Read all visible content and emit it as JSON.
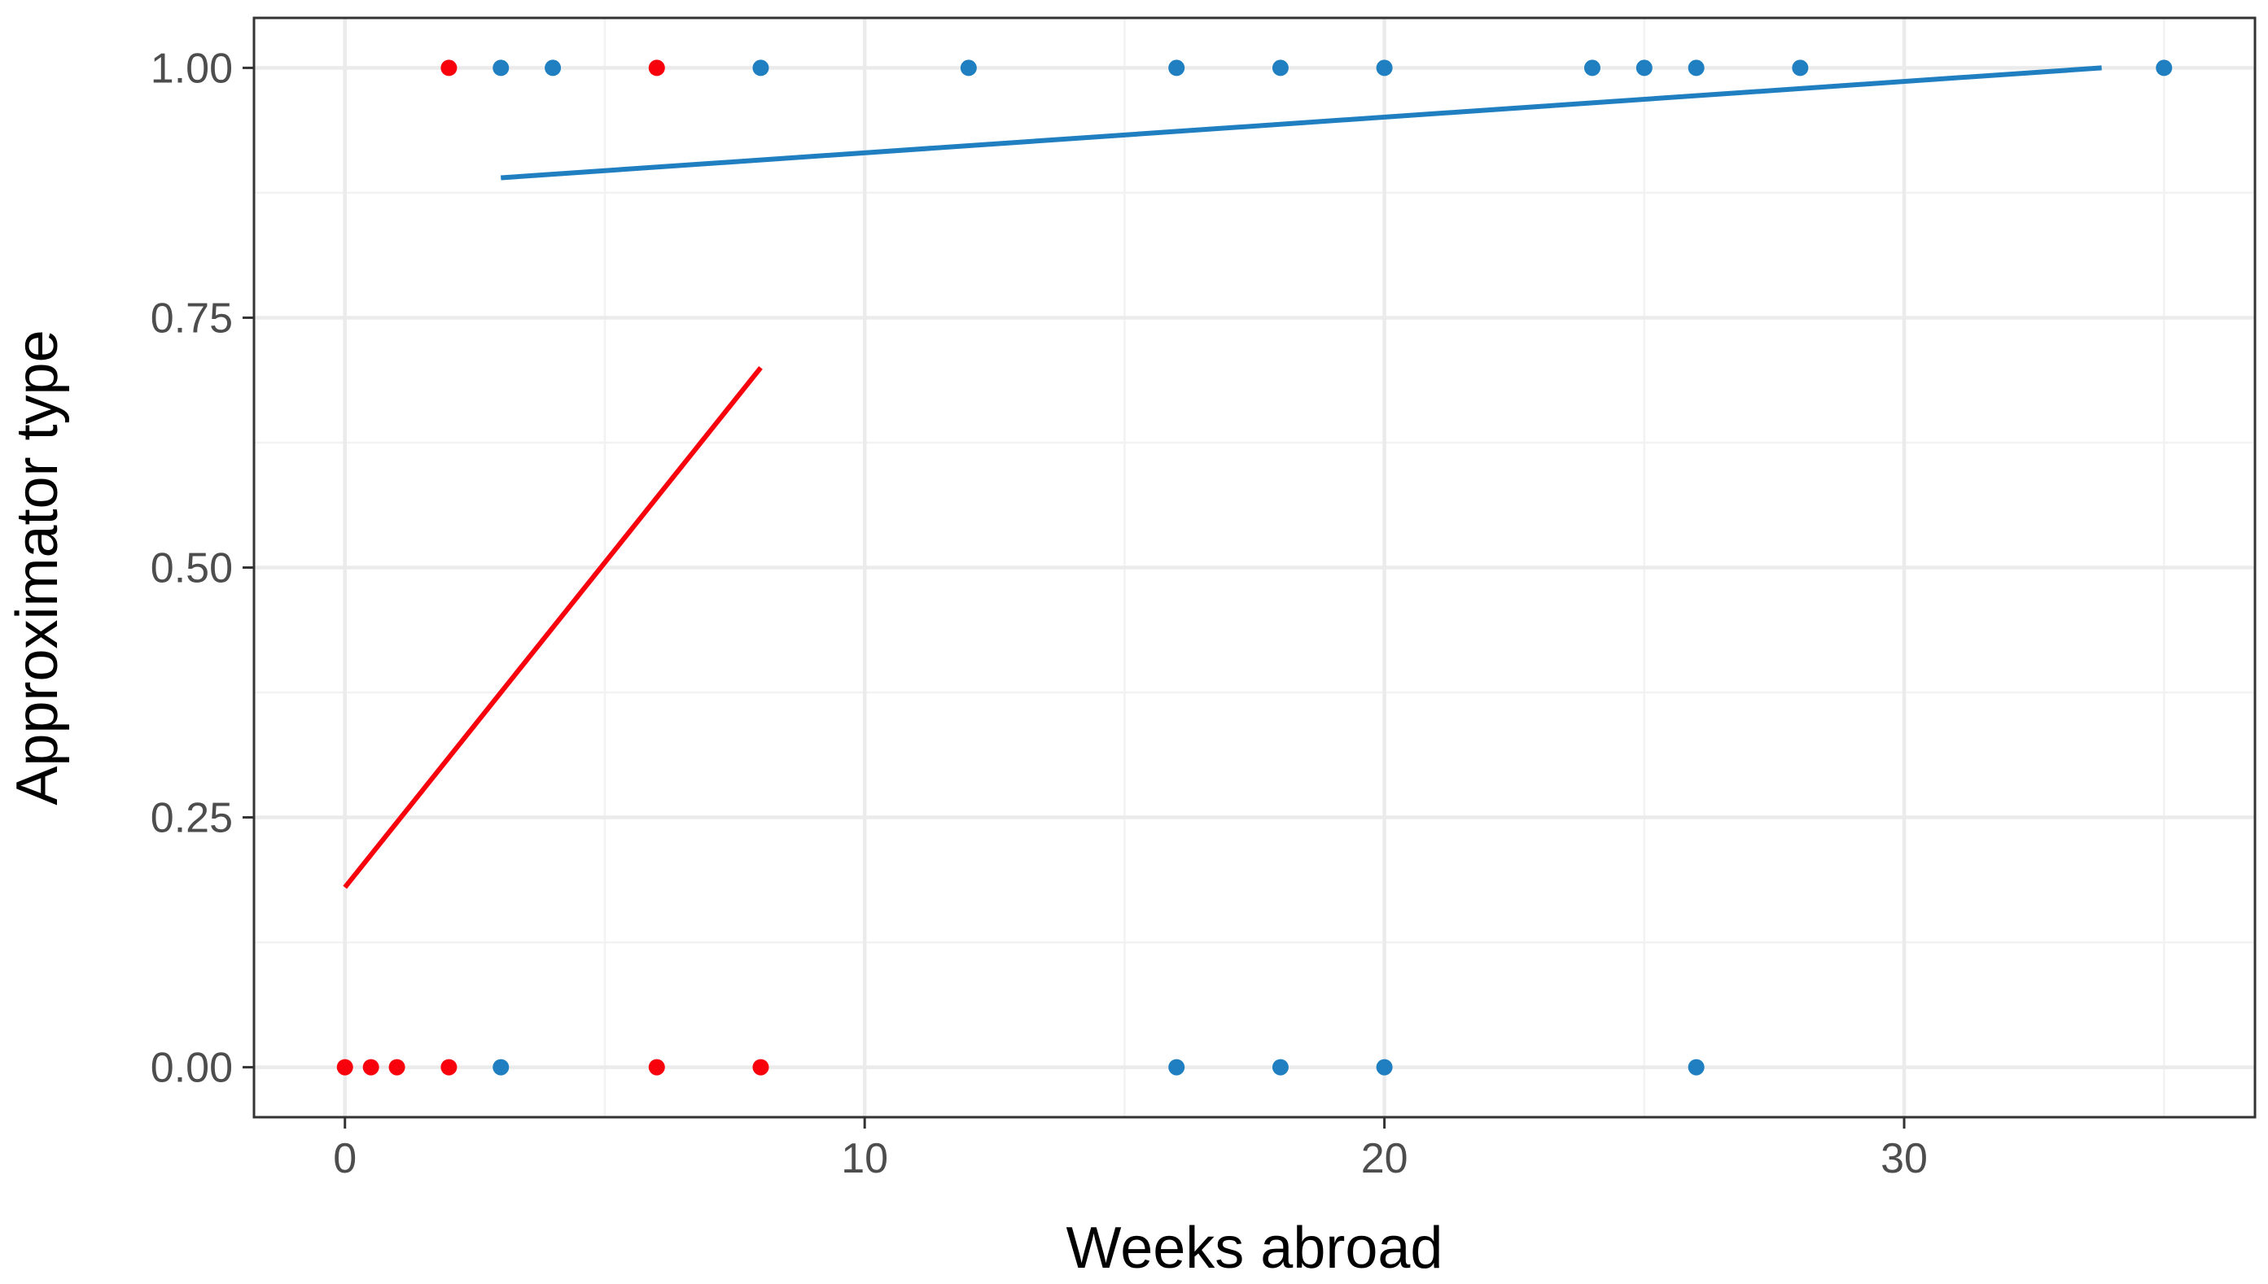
{
  "chart_data": {
    "type": "scatter",
    "title": "",
    "xlabel": "Weeks abroad",
    "ylabel": "Approximator type",
    "xlim": [
      -1.75,
      36.75
    ],
    "ylim": [
      -0.05,
      1.05
    ],
    "x_ticks": [
      0,
      10,
      20,
      30
    ],
    "x_tick_labels": [
      "0",
      "10",
      "20",
      "30"
    ],
    "y_ticks": [
      0,
      0.25,
      0.5,
      0.75,
      1
    ],
    "y_tick_labels": [
      "0.00",
      "0.25",
      "0.50",
      "0.75",
      "1.00"
    ],
    "grid": true,
    "legend": "none",
    "series": [
      {
        "color": "#f8000c",
        "points": [
          {
            "x": 0,
            "y": 0
          },
          {
            "x": 0.5,
            "y": 0
          },
          {
            "x": 1,
            "y": 0
          },
          {
            "x": 2,
            "y": 0
          },
          {
            "x": 6,
            "y": 0
          },
          {
            "x": 8,
            "y": 0
          },
          {
            "x": 2,
            "y": 1
          },
          {
            "x": 6,
            "y": 1
          }
        ],
        "fit_line": [
          {
            "x": 0,
            "y": 0.18
          },
          {
            "x": 8,
            "y": 0.7
          }
        ]
      },
      {
        "color": "#1f7fc0",
        "points": [
          {
            "x": 3,
            "y": 0
          },
          {
            "x": 16,
            "y": 0
          },
          {
            "x": 18,
            "y": 0
          },
          {
            "x": 20,
            "y": 0
          },
          {
            "x": 26,
            "y": 0
          },
          {
            "x": 3,
            "y": 1
          },
          {
            "x": 4,
            "y": 1
          },
          {
            "x": 8,
            "y": 1
          },
          {
            "x": 12,
            "y": 1
          },
          {
            "x": 16,
            "y": 1
          },
          {
            "x": 18,
            "y": 1
          },
          {
            "x": 20,
            "y": 1
          },
          {
            "x": 24,
            "y": 1
          },
          {
            "x": 25,
            "y": 1
          },
          {
            "x": 26,
            "y": 1
          },
          {
            "x": 28,
            "y": 1
          },
          {
            "x": 35,
            "y": 1
          }
        ],
        "fit_line": [
          {
            "x": 3,
            "y": 0.89
          },
          {
            "x": 33.8,
            "y": 1.0
          }
        ]
      }
    ]
  }
}
